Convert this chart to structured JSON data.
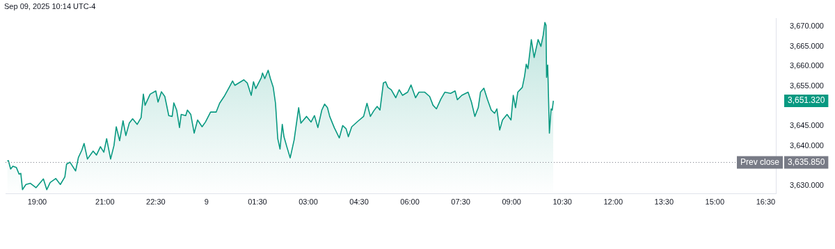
{
  "chart_data": {
    "type": "area",
    "title": "Sep 09, 2025 10:14 UTC-4",
    "x": [
      "2025-09-08T18:07",
      "2025-09-08T18:09",
      "2025-09-08T18:13",
      "2025-09-08T18:17",
      "2025-09-08T18:23",
      "2025-09-08T18:28",
      "2025-09-08T18:31",
      "2025-09-08T18:34",
      "2025-09-08T18:40",
      "2025-09-08T18:48",
      "2025-09-08T18:58",
      "2025-09-08T19:11",
      "2025-09-08T19:17",
      "2025-09-08T19:23",
      "2025-09-08T19:33",
      "2025-09-08T19:41",
      "2025-09-08T19:49",
      "2025-09-08T19:52",
      "2025-09-08T19:58",
      "2025-09-08T20:08",
      "2025-09-08T20:13",
      "2025-09-08T20:19",
      "2025-09-08T20:23",
      "2025-09-08T20:29",
      "2025-09-08T20:39",
      "2025-09-08T20:45",
      "2025-09-08T20:52",
      "2025-09-08T20:58",
      "2025-09-08T21:03",
      "2025-09-08T21:10",
      "2025-09-08T21:16",
      "2025-09-08T21:20",
      "2025-09-08T21:26",
      "2025-09-08T21:32",
      "2025-09-08T21:37",
      "2025-09-08T21:43",
      "2025-09-08T21:49",
      "2025-09-08T21:57",
      "2025-09-08T22:04",
      "2025-09-08T22:08",
      "2025-09-08T22:11",
      "2025-09-08T22:20",
      "2025-09-08T22:30",
      "2025-09-08T22:34",
      "2025-09-08T22:40",
      "2025-09-08T22:46",
      "2025-09-08T22:53",
      "2025-09-08T22:59",
      "2025-09-08T23:02",
      "2025-09-08T23:07",
      "2025-09-08T23:12",
      "2025-09-08T23:15",
      "2025-09-08T23:23",
      "2025-09-08T23:26",
      "2025-09-08T23:32",
      "2025-09-08T23:38",
      "2025-09-08T23:44",
      "2025-09-08T23:52",
      "2025-09-08T23:58",
      "2025-09-09T00:07",
      "2025-09-09T00:17",
      "2025-09-09T00:23",
      "2025-09-09T00:31",
      "2025-09-09T00:40",
      "2025-09-09T00:46",
      "2025-09-09T00:50",
      "2025-09-09T01:06",
      "2025-09-09T01:12",
      "2025-09-09T01:19",
      "2025-09-09T01:23",
      "2025-09-09T01:27",
      "2025-09-09T01:37",
      "2025-09-09T01:39",
      "2025-09-09T01:43",
      "2025-09-09T01:49",
      "2025-09-09T01:53",
      "2025-09-09T01:58",
      "2025-09-09T02:02",
      "2025-09-09T02:06",
      "2025-09-09T02:10",
      "2025-09-09T02:14",
      "2025-09-09T02:17",
      "2025-09-09T02:22",
      "2025-09-09T02:28",
      "2025-09-09T02:35",
      "2025-09-09T02:43",
      "2025-09-09T02:47",
      "2025-09-09T02:57",
      "2025-09-09T03:05",
      "2025-09-09T03:11",
      "2025-09-09T03:17",
      "2025-09-09T03:24",
      "2025-09-09T03:29",
      "2025-09-09T03:34",
      "2025-09-09T03:38",
      "2025-09-09T03:46",
      "2025-09-09T03:55",
      "2025-09-09T04:01",
      "2025-09-09T04:07",
      "2025-09-09T04:11",
      "2025-09-09T04:17",
      "2025-09-09T04:28",
      "2025-09-09T04:38",
      "2025-09-09T04:44",
      "2025-09-09T04:50",
      "2025-09-09T04:56",
      "2025-09-09T05:02",
      "2025-09-09T05:07",
      "2025-09-09T05:13",
      "2025-09-09T05:17",
      "2025-09-09T05:21",
      "2025-09-09T05:27",
      "2025-09-09T05:35",
      "2025-09-09T05:41",
      "2025-09-09T05:47",
      "2025-09-09T05:56",
      "2025-09-09T06:02",
      "2025-09-09T06:10",
      "2025-09-09T06:16",
      "2025-09-09T06:26",
      "2025-09-09T06:35",
      "2025-09-09T06:41",
      "2025-09-09T06:47",
      "2025-09-09T06:55",
      "2025-09-09T07:02",
      "2025-09-09T07:12",
      "2025-09-09T07:20",
      "2025-09-09T07:24",
      "2025-09-09T07:32",
      "2025-09-09T07:43",
      "2025-09-09T07:49",
      "2025-09-09T07:55",
      "2025-09-09T08:01",
      "2025-09-09T08:05",
      "2025-09-09T08:11",
      "2025-09-09T08:17",
      "2025-09-09T08:24",
      "2025-09-09T08:30",
      "2025-09-09T08:34",
      "2025-09-09T08:39",
      "2025-09-09T08:44",
      "2025-09-09T08:52",
      "2025-09-09T08:59",
      "2025-09-09T09:03",
      "2025-09-09T09:07",
      "2025-09-09T09:11",
      "2025-09-09T09:19",
      "2025-09-09T09:23",
      "2025-09-09T09:26",
      "2025-09-09T09:29",
      "2025-09-09T09:35",
      "2025-09-09T09:40",
      "2025-09-09T09:47",
      "2025-09-09T09:52",
      "2025-09-09T09:56",
      "2025-09-09T09:59",
      "2025-09-09T10:01",
      "2025-09-09T10:02",
      "2025-09-09T10:04",
      "2025-09-09T10:07",
      "2025-09-09T10:10",
      "2025-09-09T10:12",
      "2025-09-09T10:14"
    ],
    "series": [
      {
        "color": "#089981",
        "values": [
          3636.2,
          3636.3,
          3634.2,
          3634.9,
          3634.6,
          3632.9,
          3633.1,
          3629.0,
          3630.3,
          3630.6,
          3629.5,
          3631.7,
          3629.0,
          3630.8,
          3631.8,
          3630.3,
          3632.2,
          3635.4,
          3635.9,
          3633.7,
          3637.1,
          3638.9,
          3640.6,
          3636.7,
          3638.7,
          3637.7,
          3639.8,
          3638.4,
          3641.8,
          3636.7,
          3640.1,
          3644.8,
          3641.3,
          3646.3,
          3642.6,
          3645.7,
          3646.8,
          3645.4,
          3647.1,
          3653.0,
          3650.2,
          3653.0,
          3653.8,
          3651.0,
          3653.6,
          3652.4,
          3647.6,
          3647.4,
          3650.8,
          3649.0,
          3644.6,
          3647.9,
          3647.6,
          3649.0,
          3647.9,
          3643.2,
          3646.5,
          3644.8,
          3646.0,
          3648.5,
          3648.5,
          3650.7,
          3652.4,
          3654.7,
          3656.3,
          3655.2,
          3656.6,
          3655.8,
          3652.7,
          3656.1,
          3654.4,
          3657.2,
          3658.3,
          3656.9,
          3659.0,
          3656.9,
          3654.7,
          3650.7,
          3641.8,
          3639.2,
          3645.4,
          3642.3,
          3639.8,
          3637.0,
          3641.5,
          3649.6,
          3645.7,
          3647.4,
          3646.0,
          3647.6,
          3644.6,
          3649.0,
          3650.5,
          3649.6,
          3647.4,
          3644.6,
          3642.0,
          3645.1,
          3644.3,
          3642.3,
          3644.8,
          3646.2,
          3647.4,
          3650.7,
          3647.4,
          3648.8,
          3649.9,
          3649.0,
          3655.8,
          3656.1,
          3654.7,
          3654.1,
          3652.1,
          3654.1,
          3652.7,
          3653.5,
          3655.3,
          3652.1,
          3653.5,
          3653.5,
          3652.4,
          3650.2,
          3649.3,
          3651.8,
          3653.5,
          3653.2,
          3653.8,
          3651.6,
          3652.7,
          3653.5,
          3651.0,
          3647.4,
          3649.6,
          3653.5,
          3654.5,
          3651.8,
          3649.0,
          3648.2,
          3649.3,
          3644.0,
          3646.5,
          3647.9,
          3646.5,
          3652.7,
          3649.6,
          3653.5,
          3654.7,
          3657.5,
          3660.5,
          3659.4,
          3666.7,
          3662.2,
          3666.7,
          3665.0,
          3667.8,
          3671.0,
          3670.3,
          3657.2,
          3660.3,
          3643.2,
          3649.3,
          3649.0,
          3651.32
        ]
      }
    ],
    "xlim": [
      "2025-09-08T18:04",
      "2025-09-09T16:48"
    ],
    "xticks": [
      {
        "value": "2025-09-08T19:00",
        "label": "19:00"
      },
      {
        "value": "2025-09-08T21:00",
        "label": "21:00"
      },
      {
        "value": "2025-09-08T22:30",
        "label": "22:30"
      },
      {
        "value": "2025-09-09T00:00",
        "label": "9"
      },
      {
        "value": "2025-09-09T01:30",
        "label": "01:30"
      },
      {
        "value": "2025-09-09T03:00",
        "label": "03:00"
      },
      {
        "value": "2025-09-09T04:30",
        "label": "04:30"
      },
      {
        "value": "2025-09-09T06:00",
        "label": "06:00"
      },
      {
        "value": "2025-09-09T07:30",
        "label": "07:30"
      },
      {
        "value": "2025-09-09T09:00",
        "label": "09:00"
      },
      {
        "value": "2025-09-09T10:30",
        "label": "10:30"
      },
      {
        "value": "2025-09-09T12:00",
        "label": "12:00"
      },
      {
        "value": "2025-09-09T13:30",
        "label": "13:30"
      },
      {
        "value": "2025-09-09T15:00",
        "label": "15:00"
      },
      {
        "value": "2025-09-09T16:30",
        "label": "16:30"
      }
    ],
    "ylim": [
      3628.0,
      3672.0
    ],
    "yticks": [
      {
        "value": 3630,
        "label": "3,630.000"
      },
      {
        "value": 3640,
        "label": "3,640.000"
      },
      {
        "value": 3645,
        "label": "3,645.000"
      },
      {
        "value": 3655,
        "label": "3,655.000"
      },
      {
        "value": 3660,
        "label": "3,660.000"
      },
      {
        "value": 3665,
        "label": "3,665.000"
      },
      {
        "value": 3670,
        "label": "3,670.000"
      }
    ],
    "ref_lines": [
      {
        "axis": "y",
        "value": 3635.85,
        "label": "Prev close",
        "color": "#787b86",
        "line_style": "dotted"
      }
    ],
    "annotations": [
      "3,651.320",
      "3,635.850"
    ],
    "grid": false,
    "legend": false,
    "marker": "none",
    "line_style": "solid"
  }
}
